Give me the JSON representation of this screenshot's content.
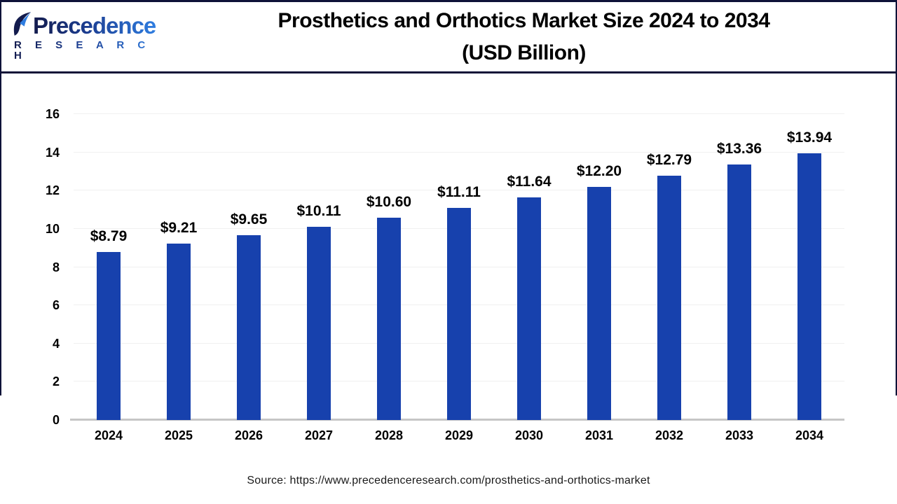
{
  "header": {
    "logo": {
      "name": "Precedence Research",
      "line1": "Precedence",
      "line2": "R E S E A R C H"
    },
    "title_line1": "Prosthetics and Orthotics Market Size 2024 to 2034",
    "title_line2": "(USD Billion)"
  },
  "chart_data": {
    "type": "bar",
    "title": "Prosthetics and Orthotics Market Size 2024 to 2034 (USD Billion)",
    "categories": [
      "2024",
      "2025",
      "2026",
      "2027",
      "2028",
      "2029",
      "2030",
      "2031",
      "2032",
      "2033",
      "2034"
    ],
    "values": [
      8.79,
      9.21,
      9.65,
      10.11,
      10.6,
      11.11,
      11.64,
      12.2,
      12.79,
      13.36,
      13.94
    ],
    "value_labels": [
      "$8.79",
      "$9.21",
      "$9.65",
      "$10.11",
      "$10.60",
      "$11.11",
      "$11.64",
      "$12.20",
      "$12.79",
      "$13.36",
      "$13.94"
    ],
    "xlabel": "",
    "ylabel": "",
    "ylim": [
      0,
      16
    ],
    "yticks": [
      0,
      2,
      4,
      6,
      8,
      10,
      12,
      14,
      16
    ],
    "grid": true,
    "legend": false,
    "bar_color": "#1741ad"
  },
  "footer": {
    "source": "Source: https://www.precedenceresearch.com/prosthetics-and-orthotics-market"
  },
  "colors": {
    "bar": "#1741ad",
    "grid": "#f0f0f0",
    "axis": "#c6c6c6",
    "border": "#0e1238",
    "logo_navy": "#131b4d",
    "logo_blue": "#2f7de0"
  }
}
